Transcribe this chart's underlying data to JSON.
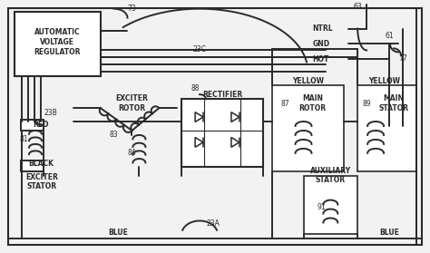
{
  "bg_color": "#f2f2f2",
  "line_color": "#2a2a2a",
  "lw": 1.4,
  "font_size": 5.5,
  "labels": {
    "avr_box": "AUTOMATIC\nVOLTAGE\nREGULATOR",
    "ntrl": "NTRL",
    "gnd": "GND",
    "hot": "HOT",
    "red": "RED",
    "black": "BLACK",
    "exciter_stator": "EXCITER\nSTATOR",
    "exciter_rotor": "EXCITER\nROTOR",
    "rectifier": "RECTIFIER",
    "yellow1": "YELLOW",
    "main_rotor": "MAIN\nROTOR",
    "yellow2": "YELLOW",
    "main_stator": "MAIN\nSTATOR",
    "auxiliary_stator": "AUXILIARY\nSTATOR",
    "blue1": "BLUE",
    "blue2": "BLUE",
    "n73": "73",
    "n23c": "23C",
    "n23b": "23B",
    "n81": "81",
    "n83": "83",
    "n84": "84",
    "n88": "88",
    "n87": "87",
    "n89": "89",
    "n63": "63",
    "n61": "61",
    "n77": "77",
    "n23a": "23A",
    "n91": "91"
  }
}
